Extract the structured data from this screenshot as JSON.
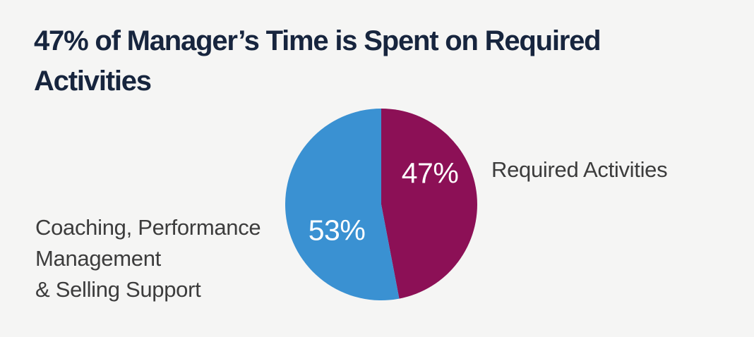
{
  "page": {
    "background_color": "#f5f5f4"
  },
  "header": {
    "title": "47% of Manager’s Time is Spent on Required Activities",
    "title_lines": [
      "47% of Manager’s Time is Spent on Required",
      "Activities"
    ],
    "title_color": "#17253e"
  },
  "chart_data": {
    "type": "pie",
    "title": "47% of Manager’s Time is Spent on Required Activities",
    "start_angle_deg": 0,
    "direction": "clockwise",
    "total": 100,
    "slices": [
      {
        "label": "Required Activities",
        "value": 47,
        "percent_label": "47%",
        "color": "#8c1056",
        "label_side": "right"
      },
      {
        "label": "Coaching, Performance Management & Selling Support",
        "value": 53,
        "percent_label": "53%",
        "color": "#3a91d2",
        "label_side": "left"
      }
    ],
    "data_label_color": "#ffffff",
    "legend_position": "none",
    "grid": false
  },
  "labels": {
    "right": "Required Activities",
    "left_lines": [
      "Coaching, Performance",
      "Management",
      "& Selling Support"
    ],
    "text_color": "#3c3c3c"
  }
}
